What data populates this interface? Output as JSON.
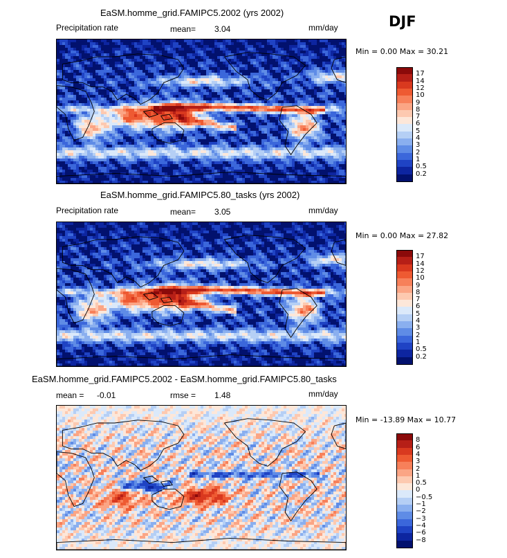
{
  "season": "DJF",
  "panels": [
    {
      "title": "EaSM.homme_grid.FAMIPC5.2002 (yrs 2002)",
      "left_label": "Precipitation rate",
      "stat1_label": "mean=",
      "stat1_value": "3.04",
      "stat2_label": "",
      "stat2_value": "",
      "units": "mm/day",
      "minmax": "Min =    0.00 Max =   30.21",
      "min": 0.0,
      "max": 30.21
    },
    {
      "title": "EaSM.homme_grid.FAMIPC5.80_tasks (yrs 2002)",
      "left_label": "Precipitation rate",
      "stat1_label": "mean=",
      "stat1_value": "3.05",
      "stat2_label": "",
      "stat2_value": "",
      "units": "mm/day",
      "minmax": "Min =    0.00 Max =   27.82",
      "min": 0.0,
      "max": 27.82
    },
    {
      "title": "EaSM.homme_grid.FAMIPC5.2002 - EaSM.homme_grid.FAMIPC5.80_tasks",
      "left_label": "",
      "stat1_label": "mean =",
      "stat1_value": "-0.01",
      "stat2_label": "rmse =",
      "stat2_value": "1.48",
      "units": "mm/day",
      "minmax": "Min = -13.89 Max =   10.77",
      "min": -13.89,
      "max": 10.77
    }
  ],
  "colorbars": {
    "precip": {
      "levels": [
        "17",
        "14",
        "12",
        "10",
        "9",
        "8",
        "7",
        "6",
        "5",
        "4",
        "3",
        "2",
        "1",
        "0.5",
        "0.2"
      ],
      "colors": [
        "#8b0a0a",
        "#b61f17",
        "#d9391f",
        "#ee5a32",
        "#f7805a",
        "#fba585",
        "#fdc9b0",
        "#fde7d9",
        "#dbe9fa",
        "#b5cff5",
        "#8aafef",
        "#5f8ce6",
        "#3b67db",
        "#1f43c4",
        "#0d25a0",
        "#02116e"
      ]
    },
    "diff": {
      "levels": [
        "8",
        "6",
        "4",
        "3",
        "2",
        "1",
        "0.5",
        "0",
        "−0.5",
        "−1",
        "−2",
        "−3",
        "−4",
        "−6",
        "−8"
      ],
      "colors": [
        "#8b0a0a",
        "#b61f17",
        "#d9391f",
        "#ee5a32",
        "#f7805a",
        "#fba585",
        "#fdc9b0",
        "#fde7d9",
        "#dbe9fa",
        "#b5cff5",
        "#8aafef",
        "#5f8ce6",
        "#3b67db",
        "#1f43c4",
        "#0d25a0",
        "#02116e"
      ]
    }
  },
  "chart_data": [
    {
      "type": "heatmap",
      "title": "EaSM.homme_grid.FAMIPC5.2002 (yrs 2002)",
      "variable": "Precipitation rate",
      "units": "mm/day",
      "season": "DJF",
      "mean": 3.04,
      "min": 0.0,
      "max": 30.21,
      "contour_levels": [
        0.2,
        0.5,
        1,
        2,
        3,
        4,
        5,
        6,
        7,
        8,
        9,
        10,
        12,
        14,
        17
      ]
    },
    {
      "type": "heatmap",
      "title": "EaSM.homme_grid.FAMIPC5.80_tasks (yrs 2002)",
      "variable": "Precipitation rate",
      "units": "mm/day",
      "season": "DJF",
      "mean": 3.05,
      "min": 0.0,
      "max": 27.82,
      "contour_levels": [
        0.2,
        0.5,
        1,
        2,
        3,
        4,
        5,
        6,
        7,
        8,
        9,
        10,
        12,
        14,
        17
      ]
    },
    {
      "type": "heatmap",
      "title": "EaSM.homme_grid.FAMIPC5.2002 - EaSM.homme_grid.FAMIPC5.80_tasks",
      "units": "mm/day",
      "season": "DJF",
      "mean": -0.01,
      "rmse": 1.48,
      "min": -13.89,
      "max": 10.77,
      "contour_levels": [
        -8,
        -6,
        -4,
        -3,
        -2,
        -1,
        -0.5,
        0,
        0.5,
        1,
        2,
        3,
        4,
        6,
        8
      ]
    }
  ]
}
